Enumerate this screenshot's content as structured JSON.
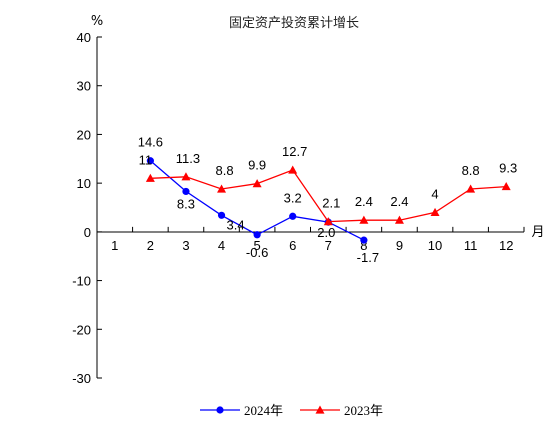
{
  "chart_data": {
    "type": "line",
    "title": "固定资产投资累计增长",
    "y_unit": "%",
    "x_unit": "月",
    "categories": [
      "1",
      "2",
      "3",
      "4",
      "5",
      "6",
      "7",
      "8",
      "9",
      "10",
      "11",
      "12"
    ],
    "ylim": [
      -30,
      40
    ],
    "yticks": [
      "40",
      "30",
      "20",
      "10",
      "0",
      "-10",
      "-20",
      "-30"
    ],
    "grid": false,
    "legend_position": "bottom",
    "series": [
      {
        "name": "2024年",
        "color": "#0000ff",
        "marker": "circle",
        "x": [
          2,
          3,
          4,
          5,
          6,
          7,
          8
        ],
        "values": [
          14.6,
          8.3,
          3.4,
          -0.6,
          3.2,
          2.0,
          -1.7
        ],
        "labels": [
          "14.6",
          "8.3",
          "3.4",
          "-0.6",
          "3.2",
          "2.0",
          "-1.7"
        ]
      },
      {
        "name": "2023年",
        "color": "#ff0000",
        "marker": "triangle",
        "x": [
          2,
          3,
          4,
          5,
          6,
          7,
          8,
          9,
          10,
          11,
          12
        ],
        "values": [
          11,
          11.3,
          8.8,
          9.9,
          12.7,
          2.1,
          2.4,
          2.4,
          4,
          8.8,
          9.3
        ],
        "labels": [
          "11",
          "11.3",
          "8.8",
          "9.9",
          "12.7",
          "2.1",
          "2.4",
          "2.4",
          "4",
          "8.8",
          "9.3"
        ]
      }
    ]
  }
}
